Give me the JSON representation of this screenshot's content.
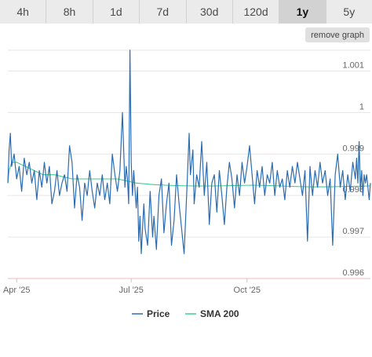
{
  "tabs": [
    {
      "label": "4h",
      "active": false
    },
    {
      "label": "8h",
      "active": false
    },
    {
      "label": "1d",
      "active": false
    },
    {
      "label": "7d",
      "active": false
    },
    {
      "label": "30d",
      "active": false
    },
    {
      "label": "120d",
      "active": false
    },
    {
      "label": "1y",
      "active": true
    },
    {
      "label": "5y",
      "active": false
    }
  ],
  "remove_graph_label": "remove graph",
  "colors": {
    "price": "#2b6cb0",
    "sma": "#3ecf8e",
    "grid": "#e6e6e6"
  },
  "chart_data": {
    "type": "line",
    "title": "",
    "xlabel": "",
    "ylabel": "",
    "ylim": [
      0.996,
      1.0015
    ],
    "y_ticks": [
      {
        "value": 0.996,
        "label": "0.996"
      },
      {
        "value": 0.997,
        "label": "0.997"
      },
      {
        "value": 0.998,
        "label": "0.998"
      },
      {
        "value": 0.999,
        "label": "0.999"
      },
      {
        "value": 1.0,
        "label": "1"
      },
      {
        "value": 1.001,
        "label": "1.001"
      }
    ],
    "x_range": [
      "2025-03-25",
      "2026-01-07"
    ],
    "x_ticks": [
      {
        "date": "2025-04-01",
        "label": "Apr '25"
      },
      {
        "date": "2025-07-01",
        "label": "Jul '25"
      },
      {
        "date": "2025-10-01",
        "label": "Oct '25"
      }
    ],
    "series": [
      {
        "name": "Price",
        "color": "#2b6cb0",
        "points": [
          [
            "2025-03-25",
            0.9983
          ],
          [
            "2025-03-26",
            0.9991
          ],
          [
            "2025-03-27",
            0.9995
          ],
          [
            "2025-03-28",
            0.9987
          ],
          [
            "2025-03-30",
            0.999
          ],
          [
            "2025-04-01",
            0.9984
          ],
          [
            "2025-04-03",
            0.9987
          ],
          [
            "2025-04-05",
            0.9981
          ],
          [
            "2025-04-07",
            0.9989
          ],
          [
            "2025-04-09",
            0.9985
          ],
          [
            "2025-04-11",
            0.9988
          ],
          [
            "2025-04-13",
            0.9983
          ],
          [
            "2025-04-15",
            0.9986
          ],
          [
            "2025-04-17",
            0.9979
          ],
          [
            "2025-04-19",
            0.9986
          ],
          [
            "2025-04-21",
            0.9982
          ],
          [
            "2025-04-23",
            0.9988
          ],
          [
            "2025-04-25",
            0.9983
          ],
          [
            "2025-04-27",
            0.9987
          ],
          [
            "2025-04-29",
            0.9978
          ],
          [
            "2025-05-01",
            0.9981
          ],
          [
            "2025-05-03",
            0.9986
          ],
          [
            "2025-05-05",
            0.998
          ],
          [
            "2025-05-07",
            0.9983
          ],
          [
            "2025-05-09",
            0.9985
          ],
          [
            "2025-05-11",
            0.9981
          ],
          [
            "2025-05-13",
            0.9992
          ],
          [
            "2025-05-15",
            0.9988
          ],
          [
            "2025-05-17",
            0.9977
          ],
          [
            "2025-05-19",
            0.9985
          ],
          [
            "2025-05-21",
            0.9982
          ],
          [
            "2025-05-23",
            0.9974
          ],
          [
            "2025-05-25",
            0.9983
          ],
          [
            "2025-05-27",
            0.998
          ],
          [
            "2025-05-29",
            0.9986
          ],
          [
            "2025-05-31",
            0.9981
          ],
          [
            "2025-06-02",
            0.9977
          ],
          [
            "2025-06-04",
            0.9983
          ],
          [
            "2025-06-06",
            0.998
          ],
          [
            "2025-06-08",
            0.9985
          ],
          [
            "2025-06-10",
            0.9979
          ],
          [
            "2025-06-12",
            0.9983
          ],
          [
            "2025-06-14",
            0.9978
          ],
          [
            "2025-06-16",
            0.999
          ],
          [
            "2025-06-18",
            0.9985
          ],
          [
            "2025-06-20",
            0.9981
          ],
          [
            "2025-06-22",
            0.9986
          ],
          [
            "2025-06-24",
            1.0
          ],
          [
            "2025-06-26",
            0.9982
          ],
          [
            "2025-06-27",
            0.9987
          ],
          [
            "2025-06-28",
            0.9984
          ],
          [
            "2025-06-29",
            0.9978
          ],
          [
            "2025-06-30",
            1.0015
          ],
          [
            "2025-07-01",
            0.9988
          ],
          [
            "2025-07-02",
            0.998
          ],
          [
            "2025-07-03",
            0.9986
          ],
          [
            "2025-07-05",
            0.9977
          ],
          [
            "2025-07-06",
            0.9982
          ],
          [
            "2025-07-07",
            0.9969
          ],
          [
            "2025-07-08",
            0.9975
          ],
          [
            "2025-07-09",
            0.9966
          ],
          [
            "2025-07-11",
            0.9978
          ],
          [
            "2025-07-12",
            0.9972
          ],
          [
            "2025-07-14",
            0.9968
          ],
          [
            "2025-07-16",
            0.9981
          ],
          [
            "2025-07-18",
            0.997
          ],
          [
            "2025-07-19",
            0.9975
          ],
          [
            "2025-07-21",
            0.9967
          ],
          [
            "2025-07-23",
            0.998
          ],
          [
            "2025-07-25",
            0.9984
          ],
          [
            "2025-07-27",
            0.9971
          ],
          [
            "2025-07-29",
            0.9978
          ],
          [
            "2025-07-31",
            0.9983
          ],
          [
            "2025-08-02",
            0.9968
          ],
          [
            "2025-08-04",
            0.9974
          ],
          [
            "2025-08-06",
            0.9985
          ],
          [
            "2025-08-08",
            0.9978
          ],
          [
            "2025-08-10",
            0.9972
          ],
          [
            "2025-08-12",
            0.9966
          ],
          [
            "2025-08-14",
            0.998
          ],
          [
            "2025-08-16",
            0.9995
          ],
          [
            "2025-08-17",
            0.9985
          ],
          [
            "2025-08-19",
            0.9991
          ],
          [
            "2025-08-20",
            0.9978
          ],
          [
            "2025-08-22",
            0.9985
          ],
          [
            "2025-08-24",
            0.9982
          ],
          [
            "2025-08-26",
            0.9993
          ],
          [
            "2025-08-28",
            0.998
          ],
          [
            "2025-08-30",
            0.9988
          ],
          [
            "2025-09-01",
            0.9973
          ],
          [
            "2025-09-03",
            0.9983
          ],
          [
            "2025-09-05",
            0.9985
          ],
          [
            "2025-09-07",
            0.9976
          ],
          [
            "2025-09-09",
            0.9986
          ],
          [
            "2025-09-11",
            0.998
          ],
          [
            "2025-09-13",
            0.9973
          ],
          [
            "2025-09-15",
            0.9982
          ],
          [
            "2025-09-17",
            0.9988
          ],
          [
            "2025-09-19",
            0.9984
          ],
          [
            "2025-09-21",
            0.9977
          ],
          [
            "2025-09-23",
            0.9985
          ],
          [
            "2025-09-25",
            0.998
          ],
          [
            "2025-09-27",
            0.9988
          ],
          [
            "2025-09-29",
            0.9983
          ],
          [
            "2025-10-01",
            0.9987
          ],
          [
            "2025-10-03",
            0.9992
          ],
          [
            "2025-10-05",
            0.9985
          ],
          [
            "2025-10-07",
            0.9978
          ],
          [
            "2025-10-09",
            0.9986
          ],
          [
            "2025-10-11",
            0.9982
          ],
          [
            "2025-10-13",
            0.9987
          ],
          [
            "2025-10-15",
            0.998
          ],
          [
            "2025-10-17",
            0.9985
          ],
          [
            "2025-10-19",
            0.9983
          ],
          [
            "2025-10-21",
            0.9988
          ],
          [
            "2025-10-23",
            0.998
          ],
          [
            "2025-10-25",
            0.9986
          ],
          [
            "2025-10-27",
            0.9982
          ],
          [
            "2025-10-29",
            0.9984
          ],
          [
            "2025-10-31",
            0.9979
          ],
          [
            "2025-11-02",
            0.9986
          ],
          [
            "2025-11-04",
            0.9982
          ],
          [
            "2025-11-06",
            0.9987
          ],
          [
            "2025-11-08",
            0.9983
          ],
          [
            "2025-11-10",
            0.9988
          ],
          [
            "2025-11-12",
            0.9984
          ],
          [
            "2025-11-14",
            0.998
          ],
          [
            "2025-11-16",
            0.9986
          ],
          [
            "2025-11-18",
            0.9969
          ],
          [
            "2025-11-20",
            0.9987
          ],
          [
            "2025-11-22",
            0.998
          ],
          [
            "2025-11-24",
            0.9986
          ],
          [
            "2025-11-26",
            0.9982
          ],
          [
            "2025-11-28",
            0.9988
          ],
          [
            "2025-11-30",
            0.9983
          ],
          [
            "2025-12-02",
            0.9986
          ],
          [
            "2025-12-04",
            0.998
          ],
          [
            "2025-12-06",
            0.9984
          ],
          [
            "2025-12-08",
            0.9968
          ],
          [
            "2025-12-10",
            0.9985
          ],
          [
            "2025-12-12",
            0.999
          ],
          [
            "2025-12-14",
            0.9982
          ],
          [
            "2025-12-16",
            0.9986
          ],
          [
            "2025-12-18",
            0.9979
          ],
          [
            "2025-12-20",
            0.9985
          ],
          [
            "2025-12-22",
            0.9981
          ],
          [
            "2025-12-24",
            0.9988
          ],
          [
            "2025-12-26",
            0.9984
          ],
          [
            "2025-12-27",
            0.9989
          ],
          [
            "2025-12-28",
            0.9983
          ],
          [
            "2025-12-29",
            0.9993
          ],
          [
            "2025-12-30",
            0.9981
          ],
          [
            "2025-12-31",
            0.9986
          ],
          [
            "2026-01-01",
            0.998
          ],
          [
            "2026-01-02",
            0.9985
          ],
          [
            "2026-01-03",
            0.9983
          ],
          [
            "2026-01-04",
            0.9985
          ],
          [
            "2026-01-05",
            0.9982
          ],
          [
            "2026-01-06",
            0.9979
          ],
          [
            "2026-01-07",
            0.9983
          ]
        ]
      },
      {
        "name": "SMA 200",
        "color": "#3ecf8e",
        "points": [
          [
            "2025-03-25",
            0.9983
          ],
          [
            "2025-03-26",
            0.9986
          ],
          [
            "2025-03-28",
            0.9988
          ],
          [
            "2025-04-01",
            0.9988
          ],
          [
            "2025-04-08",
            0.9987
          ],
          [
            "2025-04-15",
            0.9986
          ],
          [
            "2025-04-22",
            0.9985
          ],
          [
            "2025-05-01",
            0.9985
          ],
          [
            "2025-05-15",
            0.9984
          ],
          [
            "2025-06-01",
            0.9984
          ],
          [
            "2025-06-20",
            0.9984
          ],
          [
            "2025-07-05",
            0.9983
          ],
          [
            "2025-07-20",
            0.99826
          ],
          [
            "2025-08-05",
            0.99824
          ],
          [
            "2025-08-20",
            0.99823
          ],
          [
            "2025-09-05",
            0.99823
          ],
          [
            "2025-09-20",
            0.99824
          ],
          [
            "2025-10-05",
            0.99825
          ],
          [
            "2025-10-20",
            0.99824
          ],
          [
            "2025-11-05",
            0.99822
          ],
          [
            "2025-11-20",
            0.99821
          ],
          [
            "2025-12-05",
            0.99821
          ],
          [
            "2025-12-20",
            0.99822
          ],
          [
            "2026-01-07",
            0.99823
          ]
        ]
      }
    ],
    "grid": true,
    "legend_position": "bottom"
  }
}
